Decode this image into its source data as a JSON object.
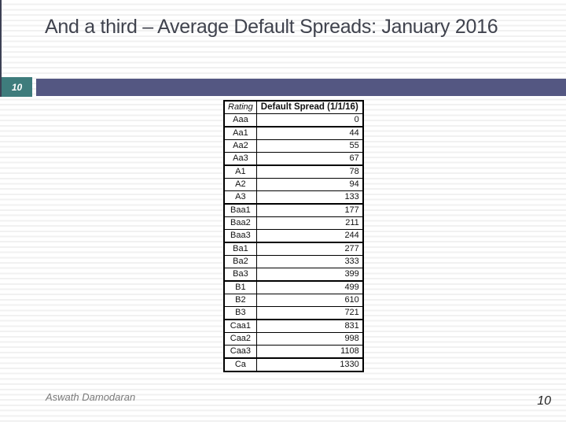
{
  "title": "And a third – Average Default Spreads: January 2016",
  "slide_number_badge": "10",
  "footer": {
    "author": "Aswath Damodaran",
    "page_number": "10"
  },
  "colors": {
    "accent_teal": "#3e7c7c",
    "accent_navy": "#545782",
    "left_line": "#3c4054",
    "title_text": "#40434e",
    "stripe_gray": "#f1f1f1",
    "table_border": "#000000"
  },
  "table": {
    "columns": [
      "Rating",
      "Default Spread (1/1/16)"
    ],
    "rows": [
      [
        "Aaa",
        "0"
      ],
      [
        "Aa1",
        "44"
      ],
      [
        "Aa2",
        "55"
      ],
      [
        "Aa3",
        "67"
      ],
      [
        "A1",
        "78"
      ],
      [
        "A2",
        "94"
      ],
      [
        "A3",
        "133"
      ],
      [
        "Baa1",
        "177"
      ],
      [
        "Baa2",
        "211"
      ],
      [
        "Baa3",
        "244"
      ],
      [
        "Ba1",
        "277"
      ],
      [
        "Ba2",
        "333"
      ],
      [
        "Ba3",
        "399"
      ],
      [
        "B1",
        "499"
      ],
      [
        "B2",
        "610"
      ],
      [
        "B3",
        "721"
      ],
      [
        "Caa1",
        "831"
      ],
      [
        "Caa2",
        "998"
      ],
      [
        "Caa3",
        "1108"
      ],
      [
        "Ca",
        "1330"
      ]
    ]
  },
  "chart_data": {
    "type": "table",
    "title": "Average Default Spreads: January 2016",
    "columns": [
      "Rating",
      "Default Spread (1/1/16)"
    ],
    "categories": [
      "Aaa",
      "Aa1",
      "Aa2",
      "Aa3",
      "A1",
      "A2",
      "A3",
      "Baa1",
      "Baa2",
      "Baa3",
      "Ba1",
      "Ba2",
      "Ba3",
      "B1",
      "B2",
      "B3",
      "Caa1",
      "Caa2",
      "Caa3",
      "Ca"
    ],
    "values": [
      0,
      44,
      55,
      67,
      78,
      94,
      133,
      177,
      211,
      244,
      277,
      333,
      399,
      499,
      610,
      721,
      831,
      998,
      1108,
      1330
    ]
  }
}
